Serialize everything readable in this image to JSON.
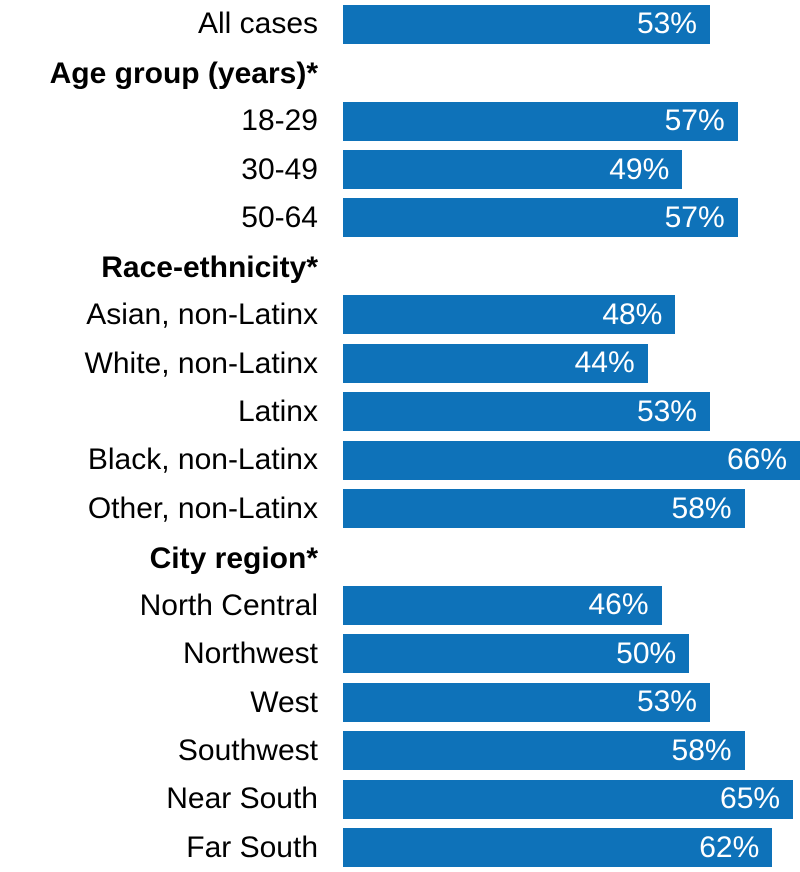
{
  "chart_data": {
    "type": "bar",
    "orientation": "horizontal",
    "title": "",
    "xlabel": "",
    "ylabel": "",
    "xlim": [
      0,
      66
    ],
    "grid": false,
    "legend": false,
    "bar_color": "#0E72B9",
    "value_label_color": "#FFFFFF",
    "category_label_color": "#000000",
    "categories": [
      "All cases",
      "18-29",
      "30-49",
      "50-64",
      "Asian, non-Latinx",
      "White, non-Latinx",
      "Latinx",
      "Black, non-Latinx",
      "Other, non-Latinx",
      "North Central",
      "Northwest",
      "West",
      "Southwest",
      "Near South",
      "Far South"
    ],
    "values": [
      53,
      57,
      49,
      57,
      48,
      44,
      53,
      66,
      58,
      46,
      50,
      53,
      58,
      65,
      62
    ],
    "group_headers": [
      "Age group (years)*",
      "Race-ethnicity*",
      "City region*"
    ],
    "rows": [
      {
        "type": "bar",
        "label": "All cases",
        "value": 53,
        "value_label": "53%"
      },
      {
        "type": "header",
        "label": "Age group (years)*"
      },
      {
        "type": "bar",
        "label": "18-29",
        "value": 57,
        "value_label": "57%"
      },
      {
        "type": "bar",
        "label": "30-49",
        "value": 49,
        "value_label": "49%"
      },
      {
        "type": "bar",
        "label": "50-64",
        "value": 57,
        "value_label": "57%"
      },
      {
        "type": "header",
        "label": "Race-ethnicity*"
      },
      {
        "type": "bar",
        "label": "Asian, non-Latinx",
        "value": 48,
        "value_label": "48%"
      },
      {
        "type": "bar",
        "label": "White, non-Latinx",
        "value": 44,
        "value_label": "44%"
      },
      {
        "type": "bar",
        "label": "Latinx",
        "value": 53,
        "value_label": "53%"
      },
      {
        "type": "bar",
        "label": "Black, non-Latinx",
        "value": 66,
        "value_label": "66%"
      },
      {
        "type": "bar",
        "label": "Other, non-Latinx",
        "value": 58,
        "value_label": "58%"
      },
      {
        "type": "header",
        "label": "City region*"
      },
      {
        "type": "bar",
        "label": "North Central",
        "value": 46,
        "value_label": "46%"
      },
      {
        "type": "bar",
        "label": "Northwest",
        "value": 50,
        "value_label": "50%"
      },
      {
        "type": "bar",
        "label": "West",
        "value": 53,
        "value_label": "53%"
      },
      {
        "type": "bar",
        "label": "Southwest",
        "value": 58,
        "value_label": "58%"
      },
      {
        "type": "bar",
        "label": "Near South",
        "value": 65,
        "value_label": "65%"
      },
      {
        "type": "bar",
        "label": "Far South",
        "value": 62,
        "value_label": "62%"
      }
    ]
  }
}
